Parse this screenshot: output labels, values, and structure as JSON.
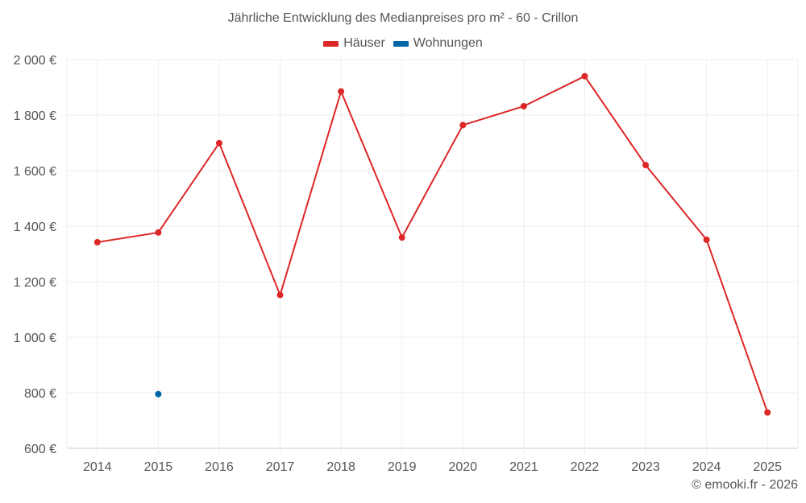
{
  "title": "Jährliche Entwicklung des Medianpreises pro m² - 60 - Crillon",
  "legend": [
    {
      "label": "Häuser",
      "color": "#dd2626"
    },
    {
      "label": "Wohnungen",
      "color": "#0066a5"
    }
  ],
  "credit": "© emooki.fr - 2026",
  "chart_data": {
    "type": "line",
    "title": "Jährliche Entwicklung des Medianpreises pro m² - 60 - Crillon",
    "xlabel": "",
    "ylabel": "",
    "categories": [
      "2014",
      "2015",
      "2016",
      "2017",
      "2018",
      "2019",
      "2020",
      "2021",
      "2022",
      "2023",
      "2024",
      "2025"
    ],
    "series": [
      {
        "name": "Häuser",
        "color": "#dd2626",
        "values": [
          1342,
          1377,
          1699,
          1152,
          1885,
          1359,
          1764,
          1832,
          1940,
          1620,
          1351,
          729
        ]
      },
      {
        "name": "Wohnungen",
        "color": "#0066a5",
        "values": [
          null,
          795,
          null,
          null,
          null,
          null,
          null,
          null,
          null,
          null,
          null,
          null
        ]
      }
    ],
    "ylim": [
      600,
      2000
    ],
    "yticks": [
      600,
      800,
      1000,
      1200,
      1400,
      1600,
      1800,
      2000
    ],
    "ytick_labels": [
      "600 €",
      "800 €",
      "1 000 €",
      "1 200 €",
      "1 400 €",
      "1 600 €",
      "1 800 €",
      "2 000 €"
    ],
    "grid": true,
    "legend_position": "top"
  }
}
